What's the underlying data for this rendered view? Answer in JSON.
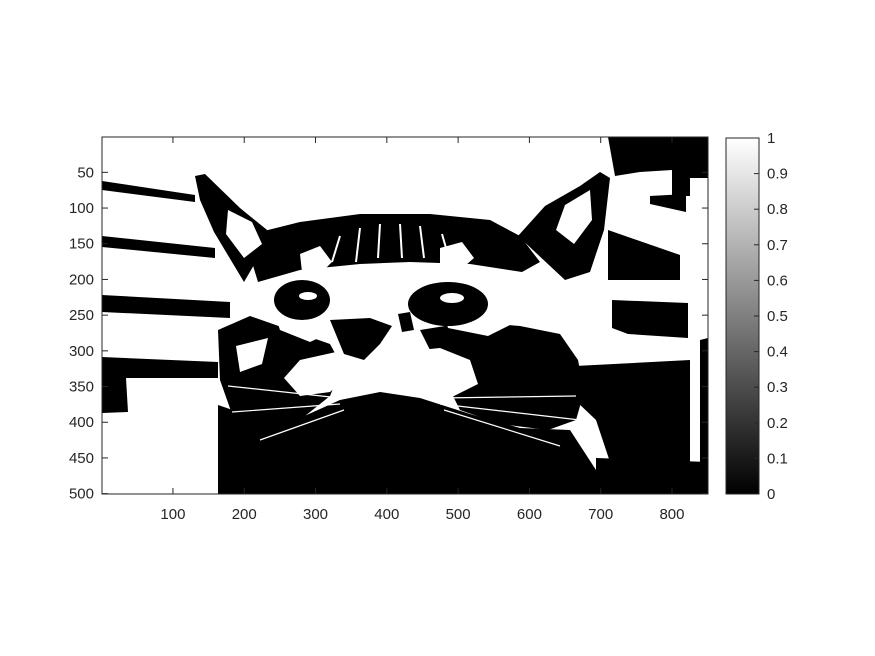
{
  "chart_data": {
    "type": "heatmap",
    "title": "",
    "xlabel": "",
    "ylabel": "",
    "colormap": "gray",
    "image_size": {
      "width": 850,
      "height": 500
    },
    "xlim": [
      0.5,
      850.5
    ],
    "ylim": [
      500.5,
      0.5
    ],
    "x_ticks": [
      100,
      200,
      300,
      400,
      500,
      600,
      700,
      800
    ],
    "x_tick_labels": [
      "100",
      "200",
      "300",
      "400",
      "500",
      "600",
      "700",
      "800"
    ],
    "y_ticks": [
      50,
      100,
      150,
      200,
      250,
      300,
      350,
      400,
      450,
      500
    ],
    "y_tick_labels": [
      "50",
      "100",
      "150",
      "200",
      "250",
      "300",
      "350",
      "400",
      "450",
      "500"
    ],
    "colorbar": {
      "range": [
        0,
        1
      ],
      "ticks": [
        0,
        0.1,
        0.2,
        0.3,
        0.4,
        0.5,
        0.6,
        0.7,
        0.8,
        0.9,
        1
      ],
      "tick_labels": [
        "0",
        "0.1",
        "0.2",
        "0.3",
        "0.4",
        "0.5",
        "0.6",
        "0.7",
        "0.8",
        "0.9",
        "1"
      ]
    },
    "image_content": "Binarized (black and white) close-up of a tabby kitten's face looking upward, with horizontal blinds in the background",
    "values": [
      0,
      1
    ]
  },
  "colors": {
    "foreground": "#000000",
    "background": "#ffffff",
    "axis": "#262626"
  }
}
